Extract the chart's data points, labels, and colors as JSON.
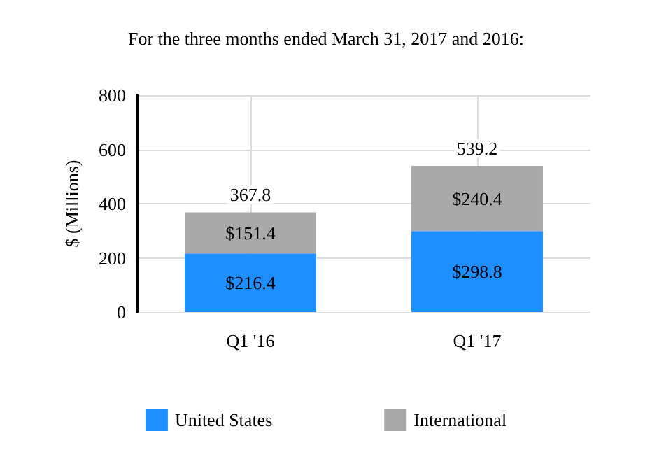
{
  "chart_data": {
    "type": "bar",
    "title": "For the three months ended March 31, 2017 and 2016:",
    "ylabel": "$ (Millions)",
    "categories": [
      "Q1 '16",
      "Q1 '17"
    ],
    "stacked": true,
    "series": [
      {
        "name": "United States",
        "color": "#1e8fff",
        "values": [
          216.4,
          298.8
        ],
        "value_labels": [
          "$216.4",
          "$298.8"
        ]
      },
      {
        "name": "International",
        "color": "#a9a9a9",
        "values": [
          151.4,
          240.4
        ],
        "value_labels": [
          "$151.4",
          "$240.4"
        ]
      }
    ],
    "totals": [
      "367.8",
      "539.2"
    ],
    "ylim": [
      0,
      800
    ],
    "yticks": [
      0,
      200,
      400,
      600,
      800
    ],
    "grid": true,
    "legend": "bottom"
  }
}
